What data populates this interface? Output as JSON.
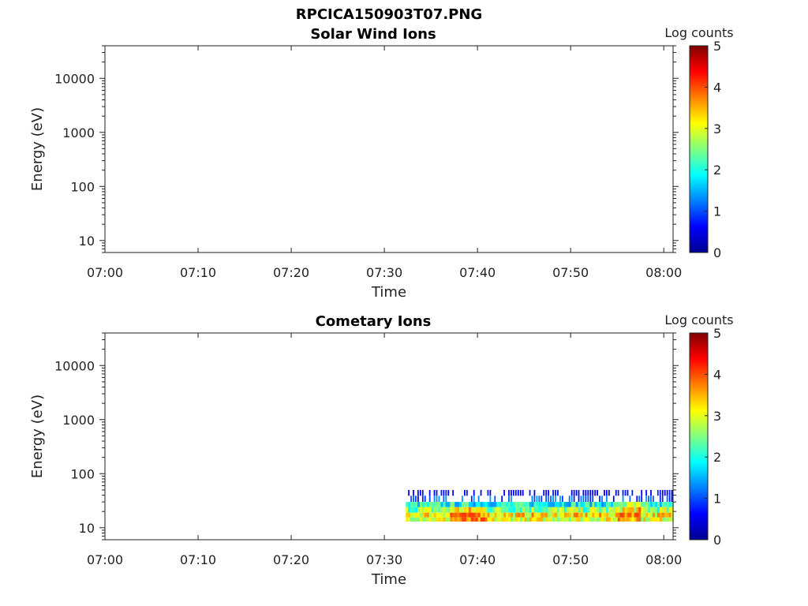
{
  "figure_title": "RPCICA150903T07.PNG",
  "chart_data": [
    {
      "type": "heatmap",
      "title": "Solar Wind Ions",
      "xlabel": "Time",
      "ylabel": "Energy (eV)",
      "x_ticks": [
        "07:00",
        "07:10",
        "07:20",
        "07:30",
        "07:40",
        "07:50",
        "08:00"
      ],
      "x_range_minutes": [
        0,
        61
      ],
      "y_scale": "log",
      "y_ticks": [
        "10",
        "100",
        "1000",
        "10000"
      ],
      "y_range": [
        6,
        40000
      ],
      "colorbar": {
        "label": "Log counts",
        "range": [
          0,
          5
        ],
        "ticks": [
          "0",
          "1",
          "2",
          "3",
          "4",
          "5"
        ]
      },
      "bands": []
    },
    {
      "type": "heatmap",
      "title": "Cometary Ions",
      "xlabel": "Time",
      "ylabel": "Energy (eV)",
      "x_ticks": [
        "07:00",
        "07:10",
        "07:20",
        "07:30",
        "07:40",
        "07:50",
        "08:00"
      ],
      "x_range_minutes": [
        0,
        61
      ],
      "y_scale": "log",
      "y_ticks": [
        "10",
        "100",
        "1000",
        "10000"
      ],
      "y_range": [
        6,
        40000
      ],
      "colorbar": {
        "label": "Log counts",
        "range": [
          0,
          5
        ],
        "ticks": [
          "0",
          "1",
          "2",
          "3",
          "4",
          "5"
        ]
      },
      "data_start_minute": 32.3,
      "bands": [
        {
          "e_low": 39,
          "e_high": 50,
          "sparse": true,
          "levels": [
            0.4,
            0.8
          ]
        },
        {
          "e_low": 30,
          "e_high": 39,
          "sparse": true,
          "levels": [
            0.6,
            1.4
          ]
        },
        {
          "e_low": 24,
          "e_high": 30,
          "sparse": false,
          "levels": [
            1.3,
            2.6
          ]
        },
        {
          "e_low": 19,
          "e_high": 24,
          "sparse": false,
          "levels": [
            1.8,
            3.3
          ]
        },
        {
          "e_low": 15.5,
          "e_high": 19,
          "sparse": false,
          "levels": [
            2.6,
            3.9
          ]
        },
        {
          "e_low": 13,
          "e_high": 15.5,
          "sparse": false,
          "levels": [
            2.4,
            3.6
          ]
        }
      ]
    }
  ]
}
